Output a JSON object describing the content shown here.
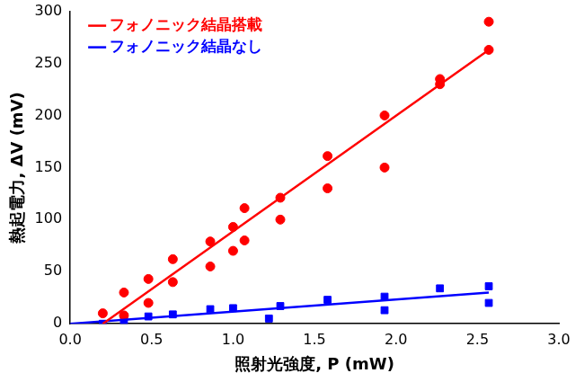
{
  "chart_data": {
    "type": "scatter",
    "x_label": "照射光強度, P (mW)",
    "y_label": "熱起電力, ΔV (mV)",
    "xlim": [
      0,
      3
    ],
    "xticks": [
      {
        "value": 0,
        "label": "0.0"
      },
      0.5,
      {
        "value": 1,
        "label": "1.0"
      },
      1.5,
      {
        "value": 2,
        "label": "2.0"
      },
      2.5,
      {
        "value": 3,
        "label": "3.0"
      }
    ],
    "ylim": [
      0,
      300
    ],
    "yticks": [
      0,
      50,
      100,
      150,
      200,
      250,
      300
    ],
    "grid": false,
    "legend": "top-left",
    "series": [
      {
        "name": "フォノニック結晶搭載",
        "color": "#ff0000",
        "marker": "circle",
        "x": [
          0.2,
          0.33,
          0.33,
          0.48,
          0.48,
          0.63,
          0.63,
          0.86,
          0.86,
          1.0,
          1.0,
          1.07,
          1.07,
          1.29,
          1.29,
          1.58,
          1.58,
          1.93,
          1.93,
          2.27,
          2.27,
          2.57,
          2.57
        ],
        "values": [
          10,
          30,
          8,
          43,
          20,
          62,
          40,
          79,
          55,
          93,
          70,
          111,
          80,
          121,
          100,
          161,
          130,
          200,
          150,
          235,
          230,
          290,
          263
        ],
        "fit_x": [
          0.2,
          2.57
        ],
        "fit_values": [
          0,
          263
        ]
      },
      {
        "name": "フォノニック結晶なし",
        "color": "#0000ff",
        "marker": "square",
        "x": [
          0.2,
          0.33,
          0.48,
          0.63,
          0.86,
          1.0,
          1.22,
          1.29,
          1.58,
          1.93,
          1.93,
          2.27,
          2.57,
          2.57
        ],
        "values": [
          0,
          3,
          7,
          9,
          14,
          15,
          5,
          17,
          23,
          26,
          13,
          34,
          36,
          20
        ],
        "fit_x": [
          0,
          2.57
        ],
        "fit_values": [
          0,
          30
        ]
      }
    ]
  }
}
